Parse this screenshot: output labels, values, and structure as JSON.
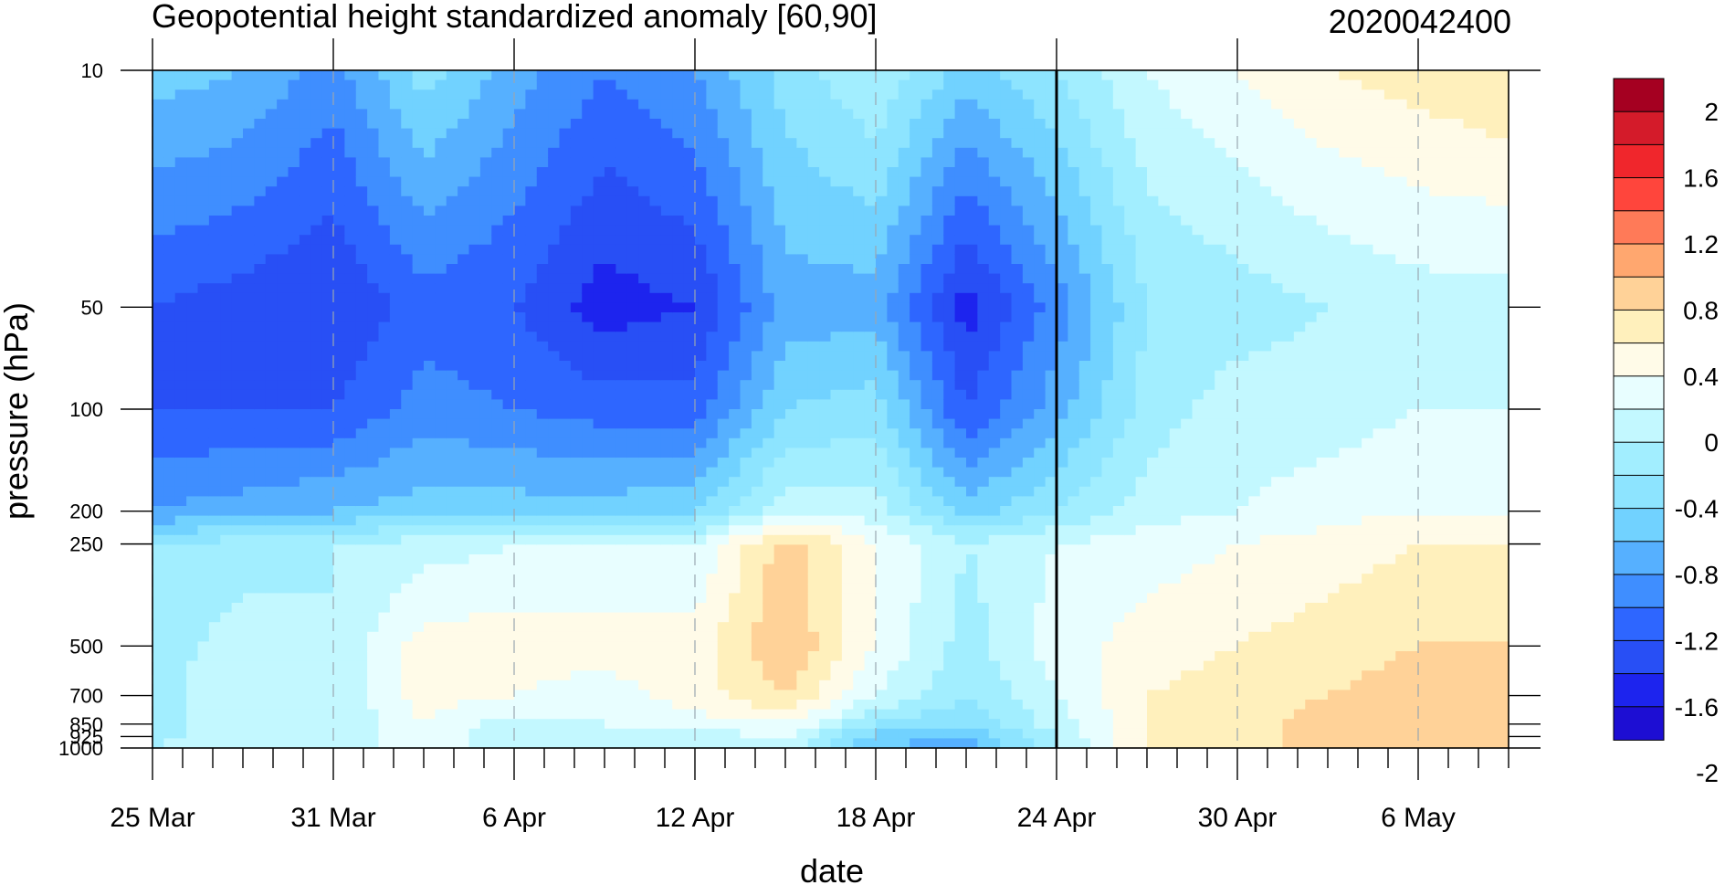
{
  "chart_data": {
    "type": "heatmap",
    "title": "Geopotential height standardized anomaly [60,90]",
    "title_right": "2020042400",
    "xlabel": "date",
    "ylabel": "pressure (hPa)",
    "x_ticks": [
      "25 Mar",
      "31 Mar",
      "6 Apr",
      "12 Apr",
      "18 Apr",
      "24 Apr",
      "30 Apr",
      "6 May"
    ],
    "y_ticks": [
      10,
      50,
      100,
      200,
      250,
      500,
      700,
      850,
      925,
      1000
    ],
    "y_tick_labels": [
      "10",
      "50",
      "100",
      "200",
      "250",
      "500",
      "700",
      "850",
      "925",
      "1000"
    ],
    "y_scale": "log",
    "ylim": [
      1000,
      10
    ],
    "x_range_days": [
      0,
      45
    ],
    "analysis_date": "24 Apr",
    "colorbar": {
      "labels": [
        "2",
        "1.6",
        "1.2",
        "0.8",
        "0.4",
        "0",
        "-0.4",
        "-0.8",
        "-1.2",
        "-1.6",
        "-2"
      ],
      "colors": [
        "#a50021",
        "#d41b2a",
        "#f0262c",
        "#ff453c",
        "#ff7a58",
        "#ffa76f",
        "#ffd298",
        "#fff0bc",
        "#fffbe8",
        "#e8feff",
        "#c3f8ff",
        "#a2eeff",
        "#8de4ff",
        "#71d2ff",
        "#56b0ff",
        "#3f8eff",
        "#2e66ff",
        "#284ff5",
        "#1d24ee",
        "#1d0ed3"
      ]
    },
    "series": [
      {
        "x": 0,
        "values": [
          -0.9,
          -1.6,
          -1.6,
          -1.2,
          -0.6,
          -0.5,
          -0.5,
          -0.5,
          -0.5,
          -0.4
        ]
      },
      {
        "x": 3,
        "values": [
          -1.0,
          -1.7,
          -1.6,
          -1.1,
          -0.5,
          -0.3,
          -0.2,
          -0.2,
          -0.2,
          -0.2
        ]
      },
      {
        "x": 6,
        "values": [
          -1.3,
          -1.8,
          -1.6,
          -1.0,
          -0.4,
          -0.4,
          -0.4,
          -0.4,
          -0.4,
          -0.4
        ]
      },
      {
        "x": 9,
        "values": [
          -0.7,
          -1.5,
          -1.3,
          -0.9,
          -0.3,
          0.1,
          0.1,
          0.0,
          0.0,
          0.0
        ]
      },
      {
        "x": 12,
        "values": [
          -1.1,
          -1.6,
          -1.4,
          -0.9,
          -0.2,
          0.1,
          0.0,
          -0.3,
          -0.4,
          -0.4
        ]
      },
      {
        "x": 15,
        "values": [
          -1.4,
          -1.9,
          -1.5,
          -0.9,
          -0.2,
          0.1,
          -0.1,
          -0.2,
          -0.3,
          -0.4
        ]
      },
      {
        "x": 18,
        "values": [
          -1.2,
          -1.8,
          -1.5,
          -0.8,
          -0.2,
          0.1,
          0.1,
          -0.1,
          -0.3,
          -0.3
        ]
      },
      {
        "x": 21,
        "values": [
          -0.7,
          -1.1,
          -0.8,
          -0.3,
          0.5,
          0.6,
          0.4,
          0.0,
          -0.2,
          -0.3
        ]
      },
      {
        "x": 24,
        "values": [
          -0.4,
          -1.1,
          -0.7,
          -0.3,
          0.0,
          0.0,
          -0.2,
          -0.6,
          -0.9,
          -1.0
        ]
      },
      {
        "x": 27,
        "values": [
          -0.9,
          -1.9,
          -1.6,
          -0.9,
          -0.4,
          -0.5,
          -0.6,
          -0.8,
          -1.0,
          -1.1
        ]
      },
      {
        "x": 30,
        "values": [
          -0.6,
          -1.3,
          -1.1,
          -0.6,
          -0.2,
          -0.1,
          -0.2,
          -0.3,
          -0.4,
          -0.4
        ]
      },
      {
        "x": 33,
        "values": [
          -0.2,
          -0.6,
          -0.5,
          -0.3,
          -0.1,
          0.1,
          0.2,
          0.2,
          0.2,
          0.2
        ]
      },
      {
        "x": 36,
        "values": [
          0.0,
          -0.5,
          -0.3,
          -0.2,
          0.0,
          0.2,
          0.3,
          0.3,
          0.3,
          0.3
        ]
      },
      {
        "x": 39,
        "values": [
          0.2,
          -0.4,
          -0.3,
          -0.1,
          0.1,
          0.3,
          0.4,
          0.5,
          0.5,
          0.5
        ]
      },
      {
        "x": 42,
        "values": [
          0.3,
          -0.3,
          -0.2,
          0.0,
          0.2,
          0.4,
          0.5,
          0.6,
          0.6,
          0.6
        ]
      },
      {
        "x": 45,
        "values": [
          0.4,
          -0.3,
          -0.2,
          0.0,
          0.2,
          0.4,
          0.5,
          0.5,
          0.5,
          0.5
        ]
      }
    ]
  }
}
